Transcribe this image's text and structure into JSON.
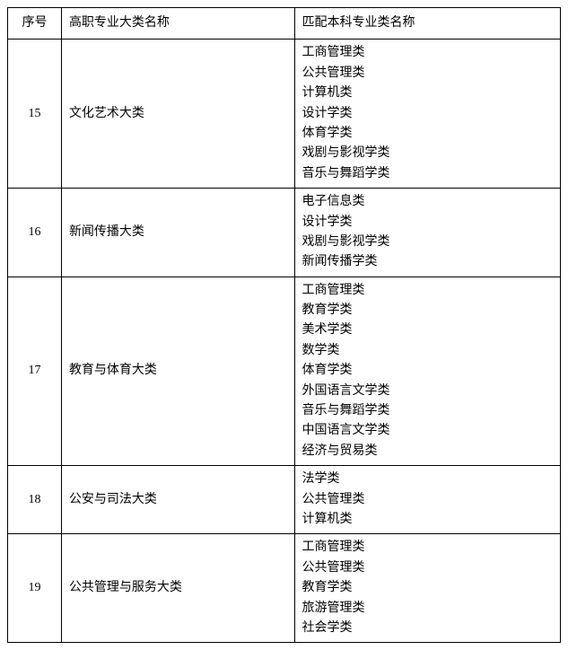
{
  "headers": {
    "seq": "序号",
    "major": "高职专业大类名称",
    "match": "匹配本科专业类名称"
  },
  "rows": [
    {
      "seq": "15",
      "major": "文化艺术大类",
      "matches": [
        "工商管理类",
        "公共管理类",
        "计算机类",
        "设计学类",
        "体育学类",
        "戏剧与影视学类",
        "音乐与舞蹈学类"
      ]
    },
    {
      "seq": "16",
      "major": "新闻传播大类",
      "matches": [
        "电子信息类",
        "设计学类",
        "戏剧与影视学类",
        "新闻传播学类"
      ]
    },
    {
      "seq": "17",
      "major": "教育与体育大类",
      "matches": [
        "工商管理类",
        "教育学类",
        "美术学类",
        "数学类",
        "体育学类",
        "外国语言文学类",
        "音乐与舞蹈学类",
        "中国语言文学类",
        "经济与贸易类"
      ]
    },
    {
      "seq": "18",
      "major": "公安与司法大类",
      "matches": [
        "法学类",
        "公共管理类",
        "计算机类"
      ]
    },
    {
      "seq": "19",
      "major": "公共管理与服务大类",
      "matches": [
        "工商管理类",
        "公共管理类",
        "教育学类",
        "旅游管理类",
        "社会学类"
      ]
    }
  ]
}
